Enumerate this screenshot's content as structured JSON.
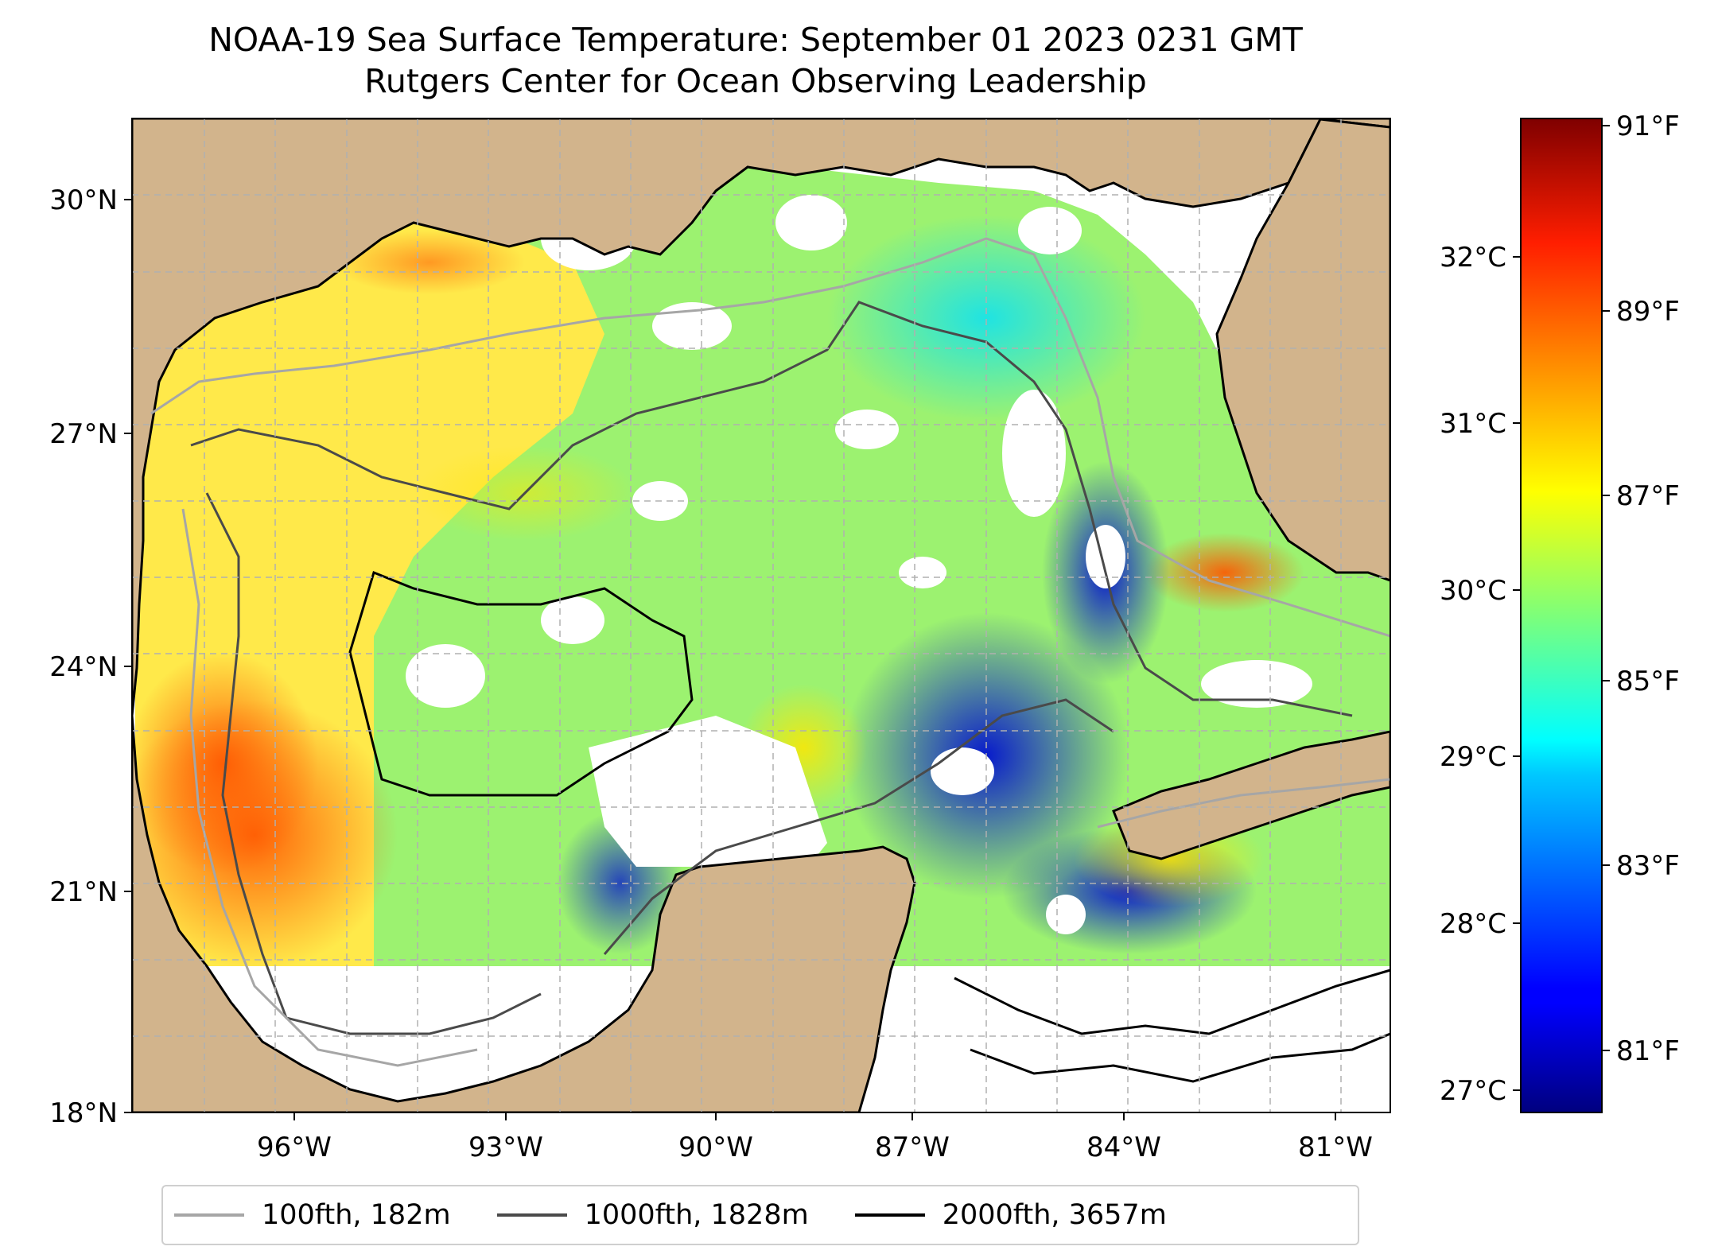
{
  "title": "NOAA-19 Sea Surface Temperature: September 01 2023 0231 GMT",
  "subtitle": "Rutgers Center for Ocean Observing Leadership",
  "map": {
    "lon_range": [
      -98.3,
      -80.6
    ],
    "lat_range": [
      18,
      31
    ],
    "lat_ticks": [
      "30°N",
      "27°N",
      "24°N",
      "21°N",
      "18°N"
    ],
    "lon_ticks": [
      "96°W",
      "93°W",
      "90°W",
      "87°W",
      "84°W",
      "81°W"
    ],
    "land_color": "#D2B48C",
    "gridlines": true
  },
  "colorbar": {
    "colormap": "jet",
    "celsius_ticks": [
      "32°C",
      "31°C",
      "30°C",
      "29°C",
      "28°C",
      "27°C"
    ],
    "fahrenheit_ticks": [
      "91°F",
      "89°F",
      "87°F",
      "85°F",
      "83°F",
      "81°F"
    ],
    "min_f": 80.3,
    "max_f": 91.1
  },
  "legend": {
    "items": [
      {
        "label": "100fth, 182m",
        "color": "#a6a6a6"
      },
      {
        "label": "1000fth, 1828m",
        "color": "#4a4a4a"
      },
      {
        "label": "2000fth, 3657m",
        "color": "#000000"
      }
    ]
  }
}
